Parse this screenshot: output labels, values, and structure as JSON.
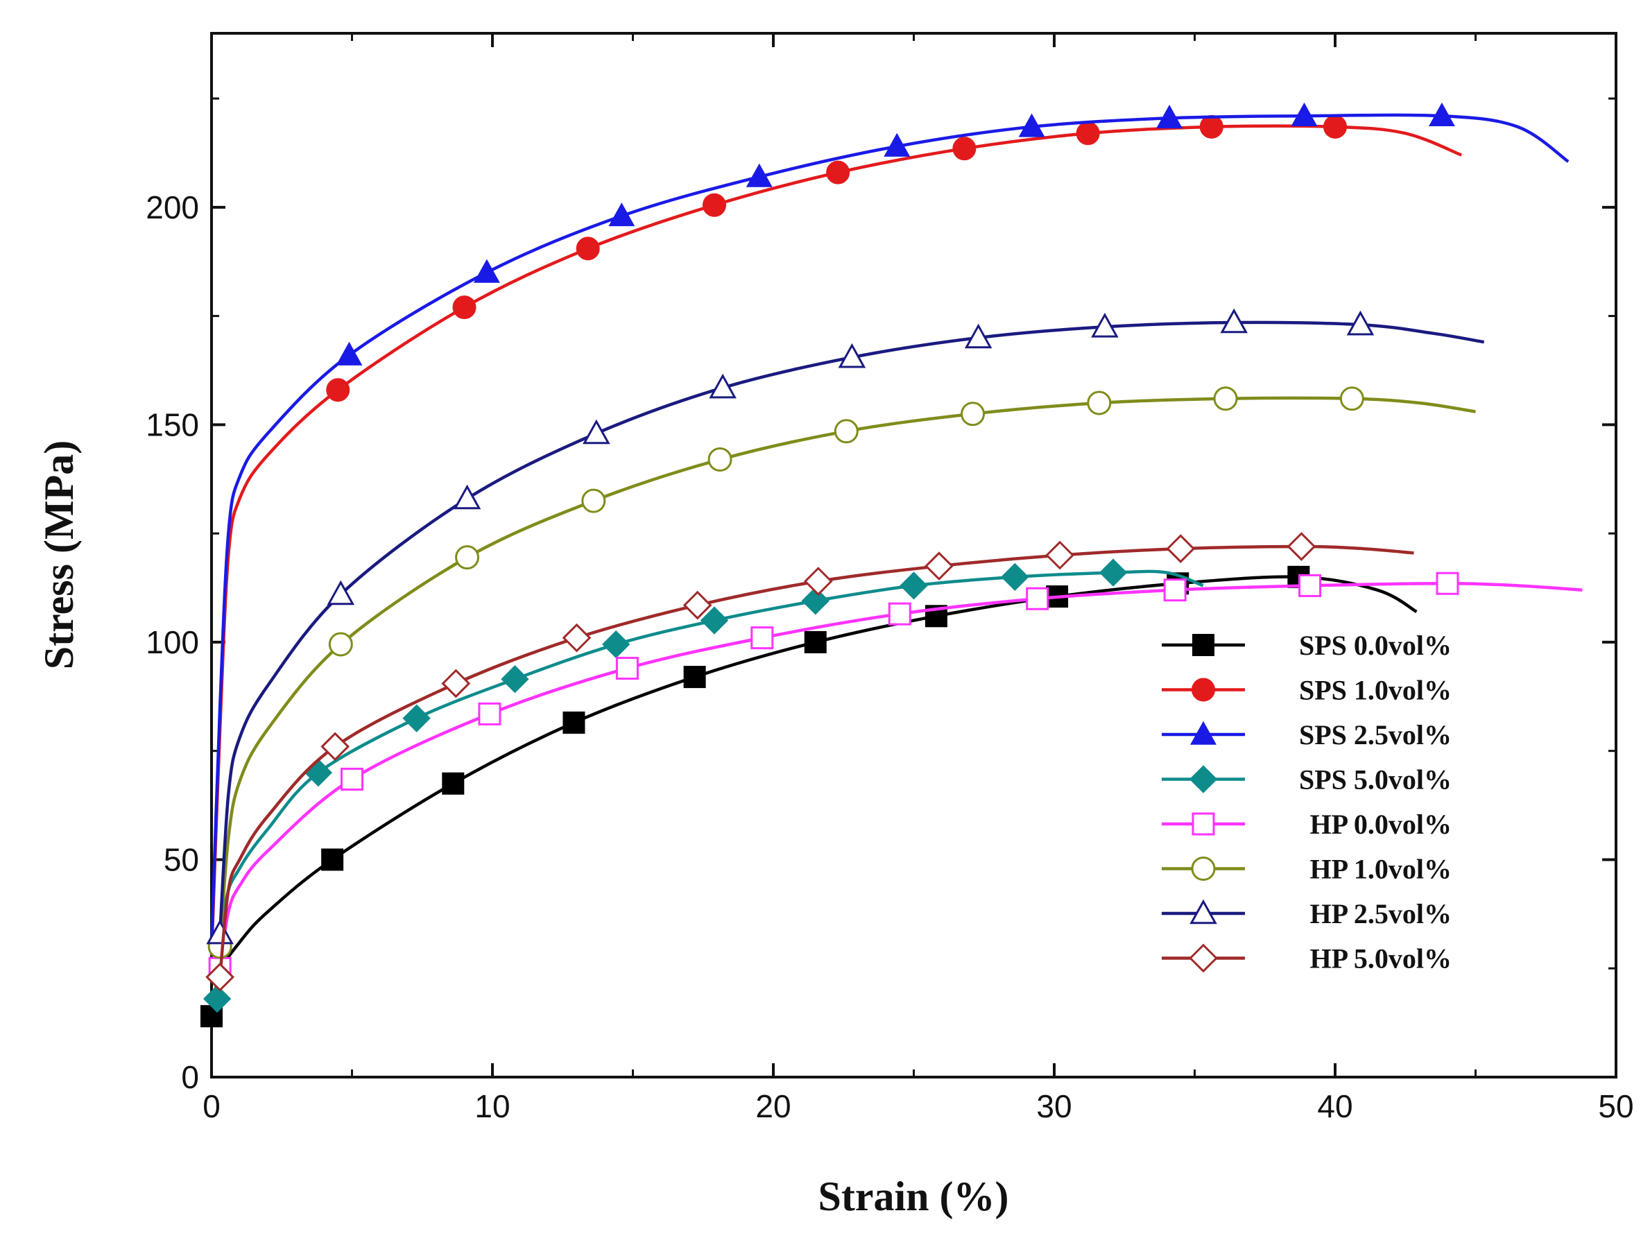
{
  "chart_data": {
    "type": "line",
    "title": "",
    "xlabel": "Strain (%)",
    "ylabel": "Stress (MPa)",
    "xlim": [
      0,
      50
    ],
    "ylim": [
      0,
      240
    ],
    "xticks": [
      0,
      10,
      20,
      30,
      40,
      50
    ],
    "yticks": [
      0,
      50,
      100,
      150,
      200
    ],
    "xtick_labels": [
      "0",
      "10",
      "20",
      "30",
      "40",
      "50"
    ],
    "ytick_labels": [
      "0",
      "50",
      "100",
      "150",
      "200"
    ],
    "grid": false,
    "legend_position": "lower-right",
    "series": [
      {
        "name": "SPS 0.0vol%",
        "color": "#000000",
        "marker": "square-filled",
        "x": [
          0,
          0.3,
          1,
          2,
          4.3,
          8.6,
          12.9,
          17.2,
          21.5,
          25.8,
          30.1,
          34.4,
          38.7,
          41.5,
          42.9
        ],
        "y": [
          14,
          24,
          31,
          38,
          50,
          67.5,
          81.5,
          92,
          100,
          106,
          110.5,
          113.5,
          115,
          112,
          107
        ]
      },
      {
        "name": "SPS 1.0vol%",
        "color": "#e31a1c",
        "marker": "circle-filled",
        "x": [
          0,
          0.3,
          0.6,
          1,
          2,
          4.5,
          9,
          13.4,
          17.9,
          22.3,
          26.8,
          31.2,
          35.6,
          40,
          42.5,
          44.5
        ],
        "y": [
          28,
          80,
          120,
          133,
          143,
          158,
          177,
          190.5,
          200.5,
          208,
          213.5,
          217,
          218.5,
          218.5,
          217,
          212
        ]
      },
      {
        "name": "SPS 2.5vol%",
        "color": "#1a1ae6",
        "marker": "triangle-filled",
        "x": [
          0,
          0.3,
          0.6,
          1,
          2,
          4.9,
          9.8,
          14.6,
          19.5,
          24.4,
          29.2,
          34.1,
          38.9,
          43.8,
          46.5,
          48.3
        ],
        "y": [
          30,
          85,
          125,
          138,
          148,
          166,
          185,
          198,
          207,
          214,
          218.5,
          220.5,
          221,
          221,
          218.5,
          210.5
        ]
      },
      {
        "name": "SPS 5.0vol%",
        "color": "#0e8c8c",
        "marker": "diamond-filled",
        "x": [
          0.2,
          0.5,
          1,
          2,
          3.8,
          7.3,
          10.8,
          14.4,
          17.9,
          21.5,
          25,
          28.6,
          32.1,
          34,
          35.3
        ],
        "y": [
          18,
          40,
          48,
          57,
          70,
          82.5,
          91.5,
          99.5,
          105,
          109.5,
          113,
          115,
          116,
          116,
          113
        ]
      },
      {
        "name": "HP 0.0vol%",
        "color": "#ff33ff",
        "marker": "square-open",
        "x": [
          0.3,
          0.6,
          1,
          2,
          5,
          9.9,
          14.8,
          19.6,
          24.5,
          29.4,
          34.3,
          39.1,
          44,
          46.5,
          48.8
        ],
        "y": [
          25,
          38,
          44,
          52,
          68.5,
          83.5,
          94,
          101,
          106.5,
          110,
          112,
          113,
          113.5,
          113,
          112
        ]
      },
      {
        "name": "HP 1.0vol%",
        "color": "#808c1a",
        "marker": "circle-open",
        "x": [
          0.3,
          0.6,
          1,
          2,
          4.6,
          9.1,
          13.6,
          18.1,
          22.6,
          27.1,
          31.6,
          36.1,
          40.6,
          43,
          45
        ],
        "y": [
          30,
          55,
          68,
          80,
          99.5,
          119.5,
          132.5,
          142,
          148.5,
          152.5,
          155,
          156,
          156,
          155,
          153
        ]
      },
      {
        "name": "HP 2.5vol%",
        "color": "#1a1a80",
        "marker": "triangle-open",
        "x": [
          0.3,
          0.6,
          1,
          2,
          4.6,
          9.1,
          13.7,
          18.2,
          22.8,
          27.3,
          31.8,
          36.4,
          40.9,
          43.5,
          45.3
        ],
        "y": [
          33,
          65,
          78,
          90,
          111,
          133,
          148,
          158.5,
          165.5,
          170,
          172.5,
          173.5,
          173,
          171,
          169
        ]
      },
      {
        "name": "HP 5.0vol%",
        "color": "#a02a2a",
        "marker": "diamond-open",
        "x": [
          0.3,
          0.6,
          1,
          2,
          4.4,
          8.7,
          13,
          17.3,
          21.6,
          25.9,
          30.2,
          34.5,
          38.8,
          41,
          42.8
        ],
        "y": [
          23,
          43,
          50,
          60,
          76,
          90.5,
          101,
          108.5,
          114,
          117.5,
          120,
          121.5,
          122,
          121.5,
          120.5
        ]
      }
    ]
  }
}
